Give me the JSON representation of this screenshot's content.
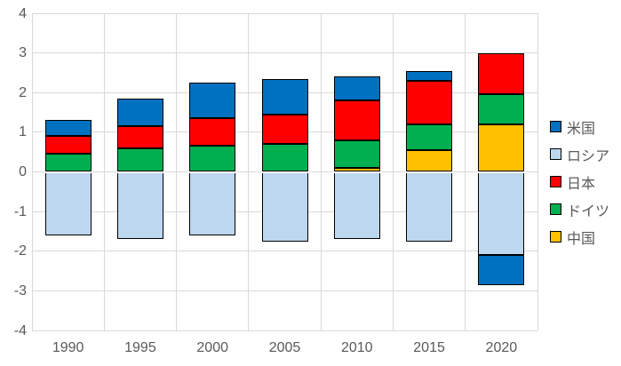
{
  "chart_data": {
    "type": "bar",
    "stacked": true,
    "title": "",
    "xlabel": "",
    "ylabel": "",
    "categories": [
      "1990",
      "1995",
      "2000",
      "2005",
      "2010",
      "2015",
      "2020"
    ],
    "series": [
      {
        "name": "米国",
        "color": "#0070C0",
        "values": [
          0.4,
          0.7,
          0.9,
          0.9,
          0.6,
          0.25,
          -0.75
        ]
      },
      {
        "name": "ロシア",
        "color": "#BDD7EE",
        "values": [
          -1.6,
          -1.7,
          -1.6,
          -1.75,
          -1.7,
          -1.75,
          -2.1
        ]
      },
      {
        "name": "日本",
        "color": "#FF0000",
        "values": [
          0.45,
          0.55,
          0.7,
          0.75,
          1.0,
          1.1,
          1.05
        ]
      },
      {
        "name": "ドイツ",
        "color": "#00B050",
        "values": [
          0.45,
          0.6,
          0.65,
          0.7,
          0.7,
          0.65,
          0.75
        ]
      },
      {
        "name": "中国",
        "color": "#FFC000",
        "values": [
          0,
          0,
          0,
          0,
          0.1,
          0.55,
          1.2
        ]
      }
    ],
    "positive_stack_order": [
      "中国",
      "ドイツ",
      "日本",
      "米国"
    ],
    "negative_stack_order": [
      "ロシア",
      "米国"
    ],
    "y_ticks": [
      "4",
      "3",
      "2",
      "1",
      "0",
      "-1",
      "-2",
      "-3",
      "-4"
    ],
    "ylim": [
      -4,
      4
    ],
    "grid": true,
    "legend_position": "right"
  },
  "style": {
    "gridline_color": "#D9D9D9",
    "axis_text_color": "#595959",
    "bar_border_color": "#000000",
    "background_color": "#FFFFFF"
  }
}
